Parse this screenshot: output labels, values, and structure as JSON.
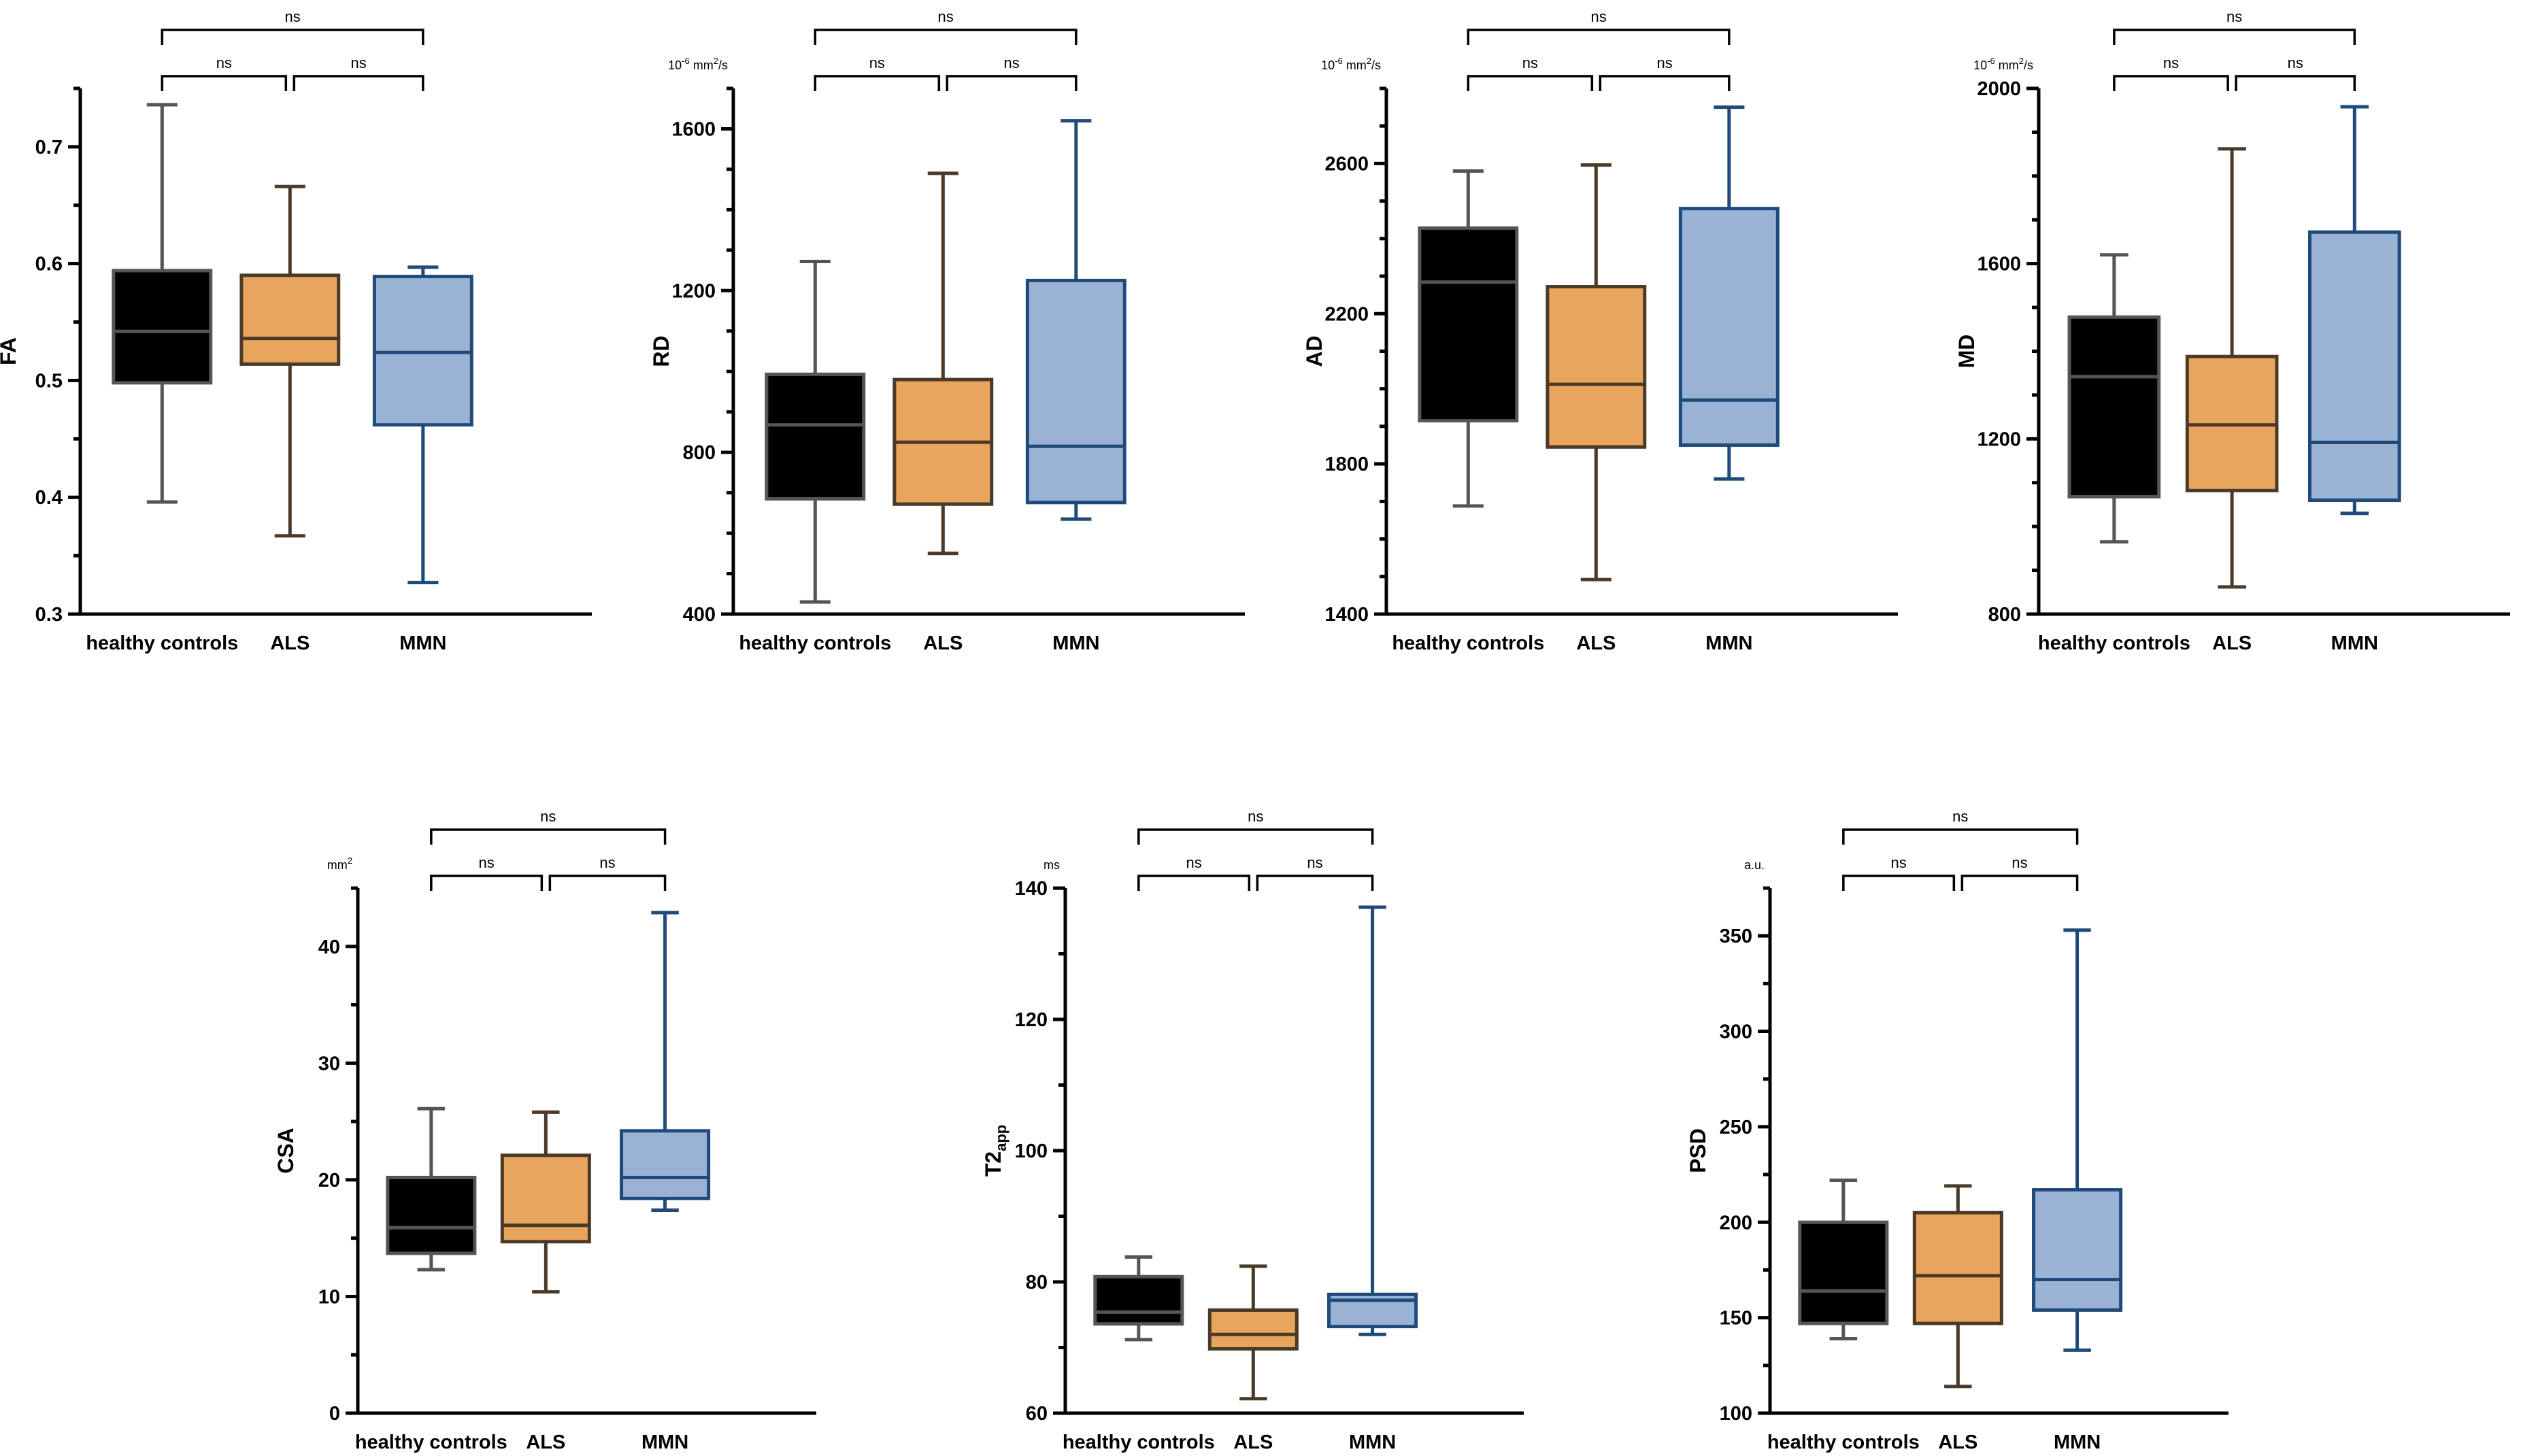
{
  "chart_data": [
    {
      "type": "box",
      "ylabel": "FA",
      "unit": "",
      "categories": [
        "healthy controls",
        "ALS",
        "MMN"
      ],
      "ylim": [
        0.3,
        0.75
      ],
      "major_ticks": [
        0.3,
        0.4,
        0.5,
        0.6,
        0.7
      ],
      "tick_labels": [
        "0.3",
        "0.4",
        "0.5",
        "0.6",
        "0.7"
      ],
      "minor_step": 0.05,
      "boxes": [
        {
          "group": "healthy controls",
          "min": 0.396,
          "q1": 0.498,
          "median": 0.542,
          "q3": 0.594,
          "max": 0.736
        },
        {
          "group": "ALS",
          "min": 0.367,
          "q1": 0.514,
          "median": 0.536,
          "q3": 0.59,
          "max": 0.666
        },
        {
          "group": "MMN",
          "min": 0.327,
          "q1": 0.462,
          "median": 0.524,
          "q3": 0.589,
          "max": 0.597
        }
      ],
      "comparisons": [
        {
          "groups": [
            "healthy controls",
            "ALS"
          ],
          "label": "ns"
        },
        {
          "groups": [
            "ALS",
            "MMN"
          ],
          "label": "ns"
        },
        {
          "groups": [
            "healthy controls",
            "MMN"
          ],
          "label": "ns"
        }
      ]
    },
    {
      "type": "box",
      "ylabel": "RD",
      "unit": "10-6 mm2/s",
      "categories": [
        "healthy controls",
        "ALS",
        "MMN"
      ],
      "ylim": [
        400,
        1700
      ],
      "major_ticks": [
        400,
        800,
        1200,
        1600
      ],
      "tick_labels": [
        "400",
        "800",
        "1200",
        "1600"
      ],
      "minor_step": 100,
      "boxes": [
        {
          "group": "healthy controls",
          "min": 430,
          "q1": 685,
          "median": 868,
          "q3": 993,
          "max": 1272
        },
        {
          "group": "ALS",
          "min": 550,
          "q1": 672,
          "median": 825,
          "q3": 980,
          "max": 1490
        },
        {
          "group": "MMN",
          "min": 635,
          "q1": 676,
          "median": 815,
          "q3": 1225,
          "max": 1620
        }
      ],
      "comparisons": [
        {
          "groups": [
            "healthy controls",
            "ALS"
          ],
          "label": "ns"
        },
        {
          "groups": [
            "ALS",
            "MMN"
          ],
          "label": "ns"
        },
        {
          "groups": [
            "healthy controls",
            "MMN"
          ],
          "label": "ns"
        }
      ]
    },
    {
      "type": "box",
      "ylabel": "AD",
      "unit": "10-6 mm2/s",
      "categories": [
        "healthy controls",
        "ALS",
        "MMN"
      ],
      "ylim": [
        1400,
        2800
      ],
      "major_ticks": [
        1400,
        1800,
        2200,
        2600
      ],
      "tick_labels": [
        "1400",
        "1800",
        "2200",
        "2600"
      ],
      "minor_step": 100,
      "boxes": [
        {
          "group": "healthy controls",
          "min": 1688,
          "q1": 1915,
          "median": 2284,
          "q3": 2428,
          "max": 2580
        },
        {
          "group": "ALS",
          "min": 1492,
          "q1": 1845,
          "median": 2012,
          "q3": 2272,
          "max": 2596
        },
        {
          "group": "MMN",
          "min": 1760,
          "q1": 1850,
          "median": 1970,
          "q3": 2480,
          "max": 2750
        }
      ],
      "comparisons": [
        {
          "groups": [
            "healthy controls",
            "ALS"
          ],
          "label": "ns"
        },
        {
          "groups": [
            "ALS",
            "MMN"
          ],
          "label": "ns"
        },
        {
          "groups": [
            "healthy controls",
            "MMN"
          ],
          "label": "ns"
        }
      ]
    },
    {
      "type": "box",
      "ylabel": "MD",
      "unit": "10-6 mm2/s",
      "categories": [
        "healthy controls",
        "ALS",
        "MMN"
      ],
      "ylim": [
        800,
        2000
      ],
      "major_ticks": [
        800,
        1200,
        1600,
        2000
      ],
      "tick_labels": [
        "800",
        "1200",
        "1600",
        "2000"
      ],
      "minor_step": 100,
      "boxes": [
        {
          "group": "healthy controls",
          "min": 965,
          "q1": 1068,
          "median": 1342,
          "q3": 1478,
          "max": 1620
        },
        {
          "group": "ALS",
          "min": 862,
          "q1": 1082,
          "median": 1232,
          "q3": 1388,
          "max": 1862
        },
        {
          "group": "MMN",
          "min": 1030,
          "q1": 1060,
          "median": 1192,
          "q3": 1672,
          "max": 1958
        }
      ],
      "comparisons": [
        {
          "groups": [
            "healthy controls",
            "ALS"
          ],
          "label": "ns"
        },
        {
          "groups": [
            "ALS",
            "MMN"
          ],
          "label": "ns"
        },
        {
          "groups": [
            "healthy controls",
            "MMN"
          ],
          "label": "ns"
        }
      ]
    },
    {
      "type": "box",
      "ylabel": "CSA",
      "unit": "mm2",
      "categories": [
        "healthy controls",
        "ALS",
        "MMN"
      ],
      "ylim": [
        0,
        45
      ],
      "major_ticks": [
        0,
        10,
        20,
        30,
        40
      ],
      "tick_labels": [
        "0",
        "10",
        "20",
        "30",
        "40"
      ],
      "minor_step": 5,
      "boxes": [
        {
          "group": "healthy controls",
          "min": 12.3,
          "q1": 13.7,
          "median": 15.9,
          "q3": 20.2,
          "max": 26.1
        },
        {
          "group": "ALS",
          "min": 10.4,
          "q1": 14.7,
          "median": 16.1,
          "q3": 22.1,
          "max": 25.8
        },
        {
          "group": "MMN",
          "min": 17.4,
          "q1": 18.4,
          "median": 20.2,
          "q3": 24.2,
          "max": 42.9
        }
      ],
      "comparisons": [
        {
          "groups": [
            "healthy controls",
            "ALS"
          ],
          "label": "ns"
        },
        {
          "groups": [
            "ALS",
            "MMN"
          ],
          "label": "ns"
        },
        {
          "groups": [
            "healthy controls",
            "MMN"
          ],
          "label": "ns"
        }
      ]
    },
    {
      "type": "box",
      "ylabel": "T2",
      "ylabel_sub": "app",
      "unit": "ms",
      "categories": [
        "healthy controls",
        "ALS",
        "MMN"
      ],
      "ylim": [
        60,
        140
      ],
      "major_ticks": [
        60,
        80,
        100,
        120,
        140
      ],
      "tick_labels": [
        "60",
        "80",
        "100",
        "120",
        "140"
      ],
      "minor_step": 10,
      "boxes": [
        {
          "group": "healthy controls",
          "min": 71.2,
          "q1": 73.6,
          "median": 75.4,
          "q3": 80.8,
          "max": 83.8
        },
        {
          "group": "ALS",
          "min": 62.2,
          "q1": 69.8,
          "median": 72.0,
          "q3": 75.7,
          "max": 82.4
        },
        {
          "group": "MMN",
          "min": 72.0,
          "q1": 73.2,
          "median": 77.2,
          "q3": 78.1,
          "max": 137.1
        }
      ],
      "comparisons": [
        {
          "groups": [
            "healthy controls",
            "ALS"
          ],
          "label": "ns"
        },
        {
          "groups": [
            "ALS",
            "MMN"
          ],
          "label": "ns"
        },
        {
          "groups": [
            "healthy controls",
            "MMN"
          ],
          "label": "ns"
        }
      ]
    },
    {
      "type": "box",
      "ylabel": "PSD",
      "unit": "a.u.",
      "categories": [
        "healthy controls",
        "ALS",
        "MMN"
      ],
      "ylim": [
        100,
        375
      ],
      "major_ticks": [
        100,
        150,
        200,
        250,
        300,
        350
      ],
      "tick_labels": [
        "100",
        "150",
        "200",
        "250",
        "300",
        "350"
      ],
      "minor_step": 25,
      "boxes": [
        {
          "group": "healthy controls",
          "min": 139,
          "q1": 147,
          "median": 164,
          "q3": 200,
          "max": 222
        },
        {
          "group": "ALS",
          "min": 114,
          "q1": 147,
          "median": 172,
          "q3": 205,
          "max": 219
        },
        {
          "group": "MMN",
          "min": 133,
          "q1": 154,
          "median": 170,
          "q3": 217,
          "max": 353
        }
      ],
      "comparisons": [
        {
          "groups": [
            "healthy controls",
            "ALS"
          ],
          "label": "ns"
        },
        {
          "groups": [
            "ALS",
            "MMN"
          ],
          "label": "ns"
        },
        {
          "groups": [
            "healthy controls",
            "MMN"
          ],
          "label": "ns"
        }
      ]
    }
  ],
  "colors": {
    "healthy controls": {
      "fill": "#000000",
      "stroke": "#555555",
      "median": "#555555"
    },
    "ALS": {
      "fill": "#E8A55D",
      "stroke": "#4B3A28",
      "median": "#4B3A28"
    },
    "MMN": {
      "fill": "#9AB3D4",
      "stroke": "#1F4A7A",
      "median": "#1F4A7A"
    }
  }
}
